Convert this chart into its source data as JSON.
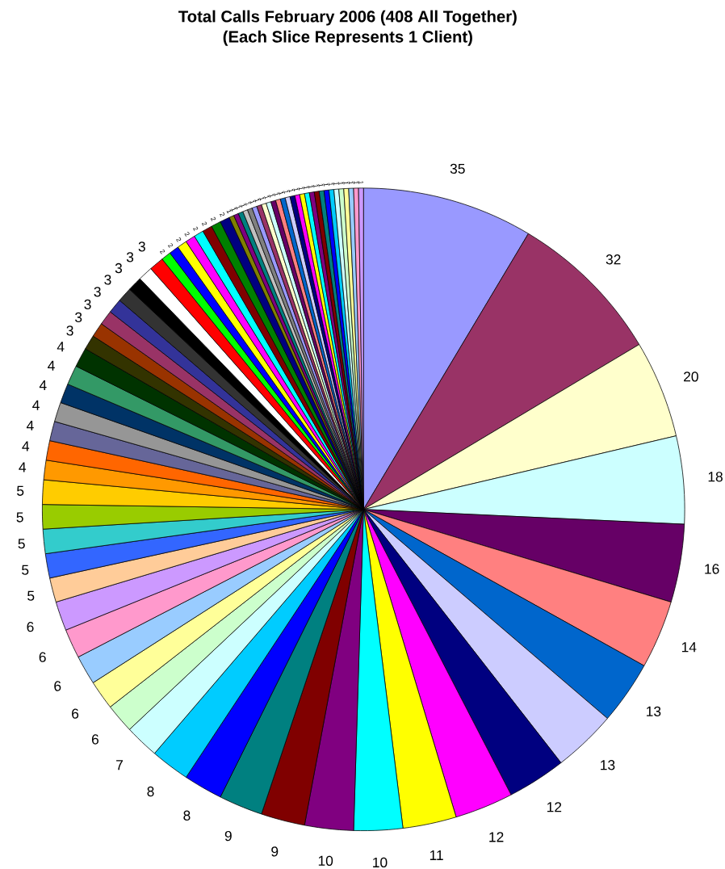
{
  "chart_data": {
    "type": "pie",
    "title": "Total Calls February 2006 (408 All Together)",
    "subtitle": "(Each Slice Represents 1 Client)",
    "categories": [
      null,
      null,
      null,
      null,
      null,
      null,
      null,
      null,
      null,
      null,
      null,
      null,
      null,
      null,
      null,
      null,
      null,
      null,
      null,
      null,
      null,
      null,
      null,
      null,
      null,
      null,
      null,
      null,
      null,
      null,
      null,
      null,
      null,
      null,
      null,
      null,
      null,
      null,
      null,
      null,
      null,
      null,
      null,
      null,
      null,
      null,
      null,
      null,
      null,
      null,
      null,
      null,
      null,
      null,
      null,
      null,
      null,
      null,
      null,
      null,
      null,
      null,
      null,
      null,
      null,
      null,
      null,
      null,
      null,
      null,
      null,
      null,
      null,
      null,
      null,
      null,
      null,
      null,
      null
    ],
    "values": [
      35,
      32,
      20,
      18,
      16,
      14,
      13,
      13,
      12,
      12,
      11,
      10,
      10,
      9,
      9,
      8,
      8,
      7,
      6,
      6,
      6,
      6,
      6,
      5,
      5,
      5,
      5,
      5,
      4,
      4,
      4,
      4,
      4,
      4,
      4,
      3,
      3,
      3,
      3,
      3,
      3,
      3,
      3,
      2,
      2,
      2,
      2,
      2,
      2,
      2,
      2,
      1,
      1,
      1,
      1,
      1,
      1,
      1,
      1,
      1,
      1,
      1,
      1,
      1,
      1,
      1,
      1,
      1,
      1,
      1,
      1,
      1,
      1,
      1,
      1,
      1,
      1,
      1,
      1
    ],
    "colors": [
      "#9999ff",
      "#993366",
      "#ffffcc",
      "#ccffff",
      "#660066",
      "#ff8080",
      "#0066cc",
      "#ccccff",
      "#000080",
      "#ff00ff",
      "#ffff00",
      "#00ffff",
      "#800080",
      "#800000",
      "#008080",
      "#0000ff",
      "#00ccff",
      "#ccffff",
      "#ccffcc",
      "#ffff99",
      "#99ccff",
      "#ff99cc",
      "#cc99ff",
      "#ffcc99",
      "#3366ff",
      "#33cccc",
      "#99cc00",
      "#ffcc00",
      "#ff9900",
      "#ff6600",
      "#666699",
      "#969696",
      "#003366",
      "#339966",
      "#003300",
      "#333300",
      "#993300",
      "#993366",
      "#333399",
      "#333333",
      "#000000",
      "#ffffff",
      "#ff0000",
      "#00ff00",
      "#0000ff",
      "#ffff00",
      "#ff00ff",
      "#00ffff",
      "#800000",
      "#008000",
      "#000080",
      "#808000",
      "#800080",
      "#008080",
      "#c0c0c0",
      "#808080",
      "#9999ff",
      "#993366",
      "#ffffcc",
      "#ccffff",
      "#660066",
      "#ff8080",
      "#0066cc",
      "#ccccff",
      "#000080",
      "#ff00ff",
      "#ffff00",
      "#00ffff",
      "#800080",
      "#800000",
      "#008080",
      "#0000ff",
      "#00ccff",
      "#ccffff",
      "#ccffcc",
      "#ffff99",
      "#99ccff",
      "#ff99cc",
      "#cc99ff"
    ],
    "data_labels": true
  }
}
